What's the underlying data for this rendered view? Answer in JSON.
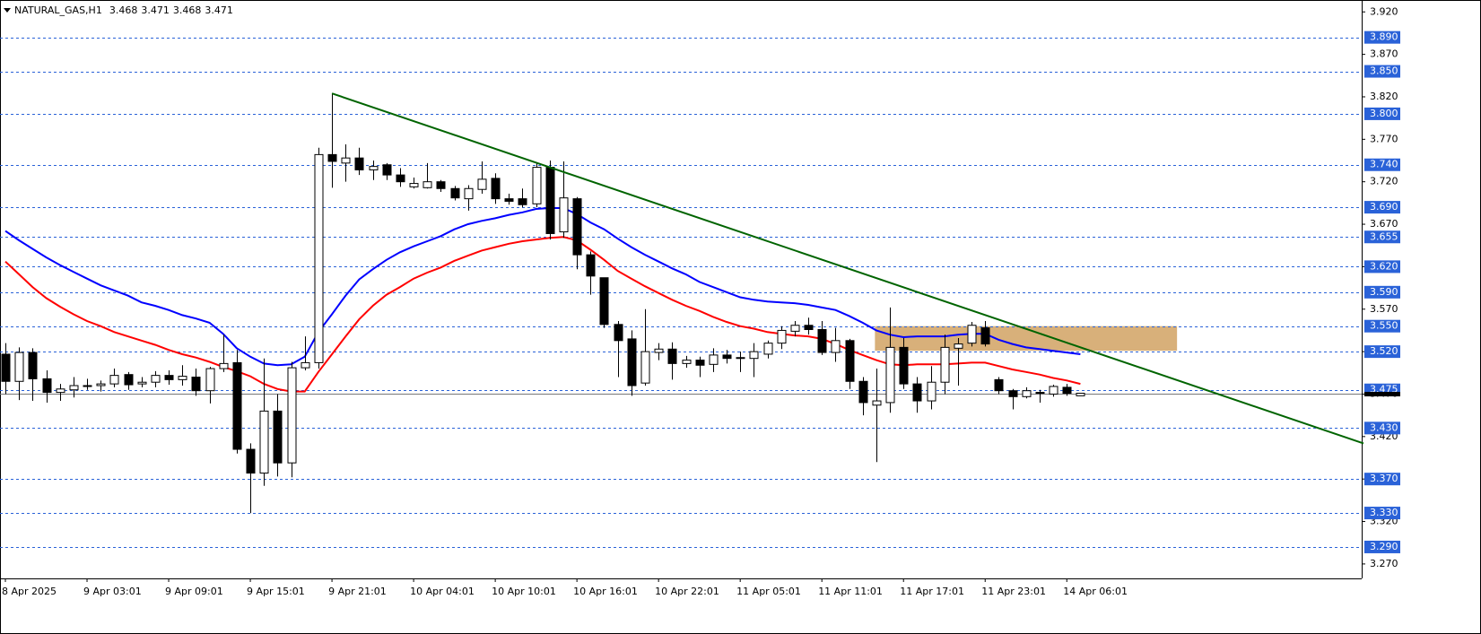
{
  "chart_data": {
    "type": "candlestick",
    "title": "NATURAL_GAS,H1",
    "categories": [
      "8 Apr 2025",
      null,
      null,
      null,
      null,
      null,
      "9 Apr 03:01",
      null,
      null,
      null,
      null,
      null,
      "9 Apr 09:01",
      null,
      null,
      null,
      null,
      null,
      "9 Apr 15:01",
      null,
      null,
      null,
      null,
      null,
      "9 Apr 21:01",
      null,
      null,
      null,
      null,
      null,
      "10 Apr 04:01",
      null,
      null,
      null,
      null,
      null,
      "10 Apr 10:01",
      null,
      null,
      null,
      null,
      null,
      "10 Apr 16:01",
      null,
      null,
      null,
      null,
      null,
      "10 Apr 22:01",
      null,
      null,
      null,
      null,
      null,
      "11 Apr 05:01",
      null,
      null,
      null,
      null,
      null,
      "11 Apr 11:01",
      null,
      null,
      null,
      null,
      null,
      "11 Apr 17:01",
      null,
      null,
      null,
      null,
      null,
      "11 Apr 23:01",
      null,
      null,
      null,
      null,
      null,
      "14 Apr 06:01",
      null
    ],
    "open": [
      3.517,
      3.485,
      3.519,
      3.488,
      3.472,
      3.475,
      3.48,
      3.48,
      3.482,
      3.493,
      3.482,
      3.484,
      3.492,
      3.487,
      3.49,
      3.474,
      3.5,
      3.507,
      3.405,
      3.377,
      3.45,
      3.389,
      3.501,
      3.507,
      3.752,
      3.742,
      3.748,
      3.734,
      3.74,
      3.728,
      3.714,
      3.713,
      3.72,
      3.712,
      3.7,
      3.711,
      3.724,
      3.7,
      3.7,
      3.694,
      3.737,
      3.661,
      3.7,
      3.634,
      3.607,
      3.552,
      3.535,
      3.483,
      3.519,
      3.523,
      3.506,
      3.51,
      3.505,
      3.516,
      3.513,
      3.512,
      3.517,
      3.53,
      3.544,
      3.551,
      3.546,
      3.519,
      3.533,
      3.485,
      3.457,
      3.46,
      3.525,
      3.482,
      3.462,
      3.484,
      3.524,
      3.53,
      3.548,
      3.487,
      3.474,
      3.467,
      3.471,
      3.47,
      3.478,
      3.468
    ],
    "high": [
      3.53,
      3.525,
      3.524,
      3.498,
      3.482,
      3.49,
      3.488,
      3.486,
      3.5,
      3.496,
      3.49,
      3.497,
      3.498,
      3.504,
      3.5,
      3.502,
      3.54,
      3.522,
      3.412,
      3.512,
      3.47,
      3.508,
      3.538,
      3.76,
      3.824,
      3.764,
      3.76,
      3.745,
      3.742,
      3.736,
      3.725,
      3.742,
      3.722,
      3.715,
      3.716,
      3.744,
      3.73,
      3.706,
      3.712,
      3.742,
      3.745,
      3.744,
      3.702,
      3.638,
      3.607,
      3.556,
      3.545,
      3.57,
      3.53,
      3.531,
      3.515,
      3.514,
      3.524,
      3.522,
      3.52,
      3.53,
      3.533,
      3.55,
      3.556,
      3.56,
      3.556,
      3.548,
      3.535,
      3.49,
      3.5,
      3.572,
      3.536,
      3.49,
      3.503,
      3.54,
      3.536,
      3.555,
      3.556,
      3.49,
      3.476,
      3.478,
      3.475,
      3.481,
      3.482,
      3.471
    ],
    "low": [
      3.47,
      3.463,
      3.462,
      3.46,
      3.462,
      3.466,
      3.475,
      3.473,
      3.478,
      3.475,
      3.478,
      3.478,
      3.481,
      3.48,
      3.468,
      3.459,
      3.496,
      3.4,
      3.33,
      3.362,
      3.373,
      3.372,
      3.498,
      3.5,
      3.713,
      3.72,
      3.728,
      3.722,
      3.722,
      3.714,
      3.712,
      3.712,
      3.708,
      3.698,
      3.686,
      3.706,
      3.694,
      3.693,
      3.69,
      3.69,
      3.652,
      3.654,
      3.617,
      3.587,
      3.548,
      3.49,
      3.468,
      3.48,
      3.51,
      3.487,
      3.501,
      3.49,
      3.496,
      3.506,
      3.496,
      3.49,
      3.512,
      3.523,
      3.538,
      3.54,
      3.516,
      3.508,
      3.476,
      3.445,
      3.39,
      3.448,
      3.476,
      3.448,
      3.452,
      3.47,
      3.48,
      3.526,
      3.526,
      3.47,
      3.452,
      3.465,
      3.46,
      3.467,
      3.468,
      3.468
    ],
    "close": [
      3.485,
      3.519,
      3.488,
      3.472,
      3.476,
      3.48,
      3.48,
      3.482,
      3.492,
      3.481,
      3.484,
      3.492,
      3.487,
      3.491,
      3.474,
      3.5,
      3.506,
      3.405,
      3.377,
      3.45,
      3.389,
      3.501,
      3.507,
      3.752,
      3.744,
      3.748,
      3.734,
      3.738,
      3.728,
      3.72,
      3.718,
      3.72,
      3.712,
      3.701,
      3.712,
      3.723,
      3.7,
      3.697,
      3.693,
      3.737,
      3.659,
      3.701,
      3.634,
      3.609,
      3.552,
      3.533,
      3.48,
      3.52,
      3.523,
      3.506,
      3.51,
      3.504,
      3.516,
      3.512,
      3.512,
      3.52,
      3.53,
      3.545,
      3.551,
      3.546,
      3.519,
      3.533,
      3.485,
      3.46,
      3.462,
      3.525,
      3.482,
      3.462,
      3.484,
      3.525,
      3.529,
      3.551,
      3.529,
      3.474,
      3.467,
      3.474,
      3.472,
      3.479,
      3.471,
      3.471
    ],
    "up_color": "#ffffff",
    "down_color": "#000000",
    "moving_averages": [
      {
        "color": "#0000ff",
        "values": [
          3.662,
          3.651,
          3.641,
          3.631,
          3.622,
          3.614,
          3.606,
          3.598,
          3.592,
          3.586,
          3.578,
          3.574,
          3.569,
          3.563,
          3.559,
          3.554,
          3.541,
          3.524,
          3.514,
          3.506,
          3.504,
          3.505,
          3.514,
          3.543,
          3.564,
          3.586,
          3.605,
          3.617,
          3.628,
          3.637,
          3.644,
          3.65,
          3.656,
          3.664,
          3.67,
          3.674,
          3.677,
          3.681,
          3.684,
          3.688,
          3.689,
          3.689,
          3.682,
          3.672,
          3.664,
          3.653,
          3.643,
          3.634,
          3.626,
          3.618,
          3.611,
          3.602,
          3.596,
          3.59,
          3.584,
          3.581,
          3.579,
          3.578,
          3.577,
          3.575,
          3.572,
          3.569,
          3.562,
          3.554,
          3.545,
          3.54,
          3.537,
          3.538,
          3.538,
          3.538,
          3.54,
          3.541,
          3.541,
          3.534,
          3.529,
          3.525,
          3.523,
          3.521,
          3.519,
          3.517
        ]
      },
      {
        "color": "#ff0000",
        "values": [
          3.626,
          3.611,
          3.596,
          3.583,
          3.573,
          3.564,
          3.556,
          3.55,
          3.543,
          3.538,
          3.533,
          3.528,
          3.522,
          3.517,
          3.513,
          3.508,
          3.502,
          3.497,
          3.491,
          3.482,
          3.476,
          3.473,
          3.473,
          3.496,
          3.517,
          3.538,
          3.558,
          3.574,
          3.587,
          3.596,
          3.606,
          3.613,
          3.619,
          3.627,
          3.633,
          3.639,
          3.643,
          3.647,
          3.65,
          3.652,
          3.654,
          3.655,
          3.651,
          3.64,
          3.628,
          3.615,
          3.606,
          3.597,
          3.589,
          3.581,
          3.574,
          3.568,
          3.561,
          3.555,
          3.55,
          3.547,
          3.543,
          3.541,
          3.539,
          3.538,
          3.535,
          3.529,
          3.522,
          3.516,
          3.51,
          3.505,
          3.504,
          3.505,
          3.505,
          3.505,
          3.506,
          3.507,
          3.507,
          3.503,
          3.499,
          3.496,
          3.493,
          3.489,
          3.486,
          3.482
        ]
      }
    ],
    "trendline": {
      "color": "#006400",
      "start": {
        "bar": 24,
        "price": 3.824
      },
      "end": {
        "bar": 99.8,
        "price": 3.412
      }
    },
    "zone": {
      "color": "#d8b07a",
      "from_bar": 63.9,
      "to_bar": 86.1,
      "top": 3.55,
      "bottom": 3.521
    },
    "ylim": [
      3.253,
      3.934
    ],
    "yticks": [
      {
        "value": 3.92,
        "label": "3.920"
      },
      {
        "value": 3.87,
        "label": "3.870"
      },
      {
        "value": 3.82,
        "label": "3.820"
      },
      {
        "value": 3.77,
        "label": "3.770"
      },
      {
        "value": 3.72,
        "label": "3.720"
      },
      {
        "value": 3.67,
        "label": "3.670"
      },
      {
        "value": 3.62,
        "label": "3.620"
      },
      {
        "value": 3.57,
        "label": "3.570"
      },
      {
        "value": 3.52,
        "label": "3.520"
      },
      {
        "value": 3.47,
        "label": "3.470"
      },
      {
        "value": 3.42,
        "label": "3.420"
      },
      {
        "value": 3.37,
        "label": "3.370"
      },
      {
        "value": 3.32,
        "label": "3.320"
      },
      {
        "value": 3.27,
        "label": "3.270"
      }
    ],
    "levels": [
      {
        "value": 3.89,
        "label": "3.890"
      },
      {
        "value": 3.85,
        "label": "3.850"
      },
      {
        "value": 3.8,
        "label": "3.800"
      },
      {
        "value": 3.74,
        "label": "3.740"
      },
      {
        "value": 3.69,
        "label": "3.690"
      },
      {
        "value": 3.655,
        "label": "3.655"
      },
      {
        "value": 3.62,
        "label": "3.620"
      },
      {
        "value": 3.59,
        "label": "3.590"
      },
      {
        "value": 3.55,
        "label": "3.550"
      },
      {
        "value": 3.52,
        "label": "3.520"
      },
      {
        "value": 3.475,
        "label": "3.475"
      },
      {
        "value": 3.43,
        "label": "3.430"
      },
      {
        "value": 3.37,
        "label": "3.370"
      },
      {
        "value": 3.33,
        "label": "3.330"
      },
      {
        "value": 3.29,
        "label": "3.290"
      }
    ],
    "level_color": "#2a62d8"
  }
}
